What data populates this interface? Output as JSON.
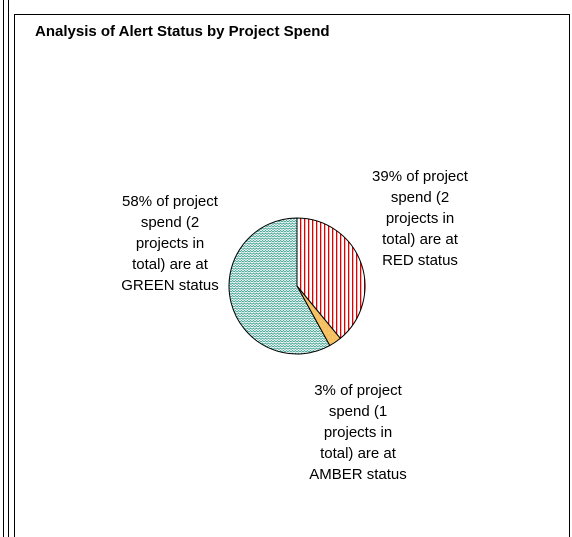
{
  "chart_data": {
    "type": "pie",
    "title": "Analysis of Alert Status by Project Spend",
    "categories": [
      "39% of project spend (2 projects in total) are at RED status",
      "3% of project spend (1 projects in total) are at AMBER status",
      "58% of project spend (2 projects in total) are at GREEN status"
    ],
    "values": [
      39,
      3,
      58
    ],
    "colors": [
      "#e00000",
      "#f5c060",
      "#2f9a8a"
    ]
  }
}
